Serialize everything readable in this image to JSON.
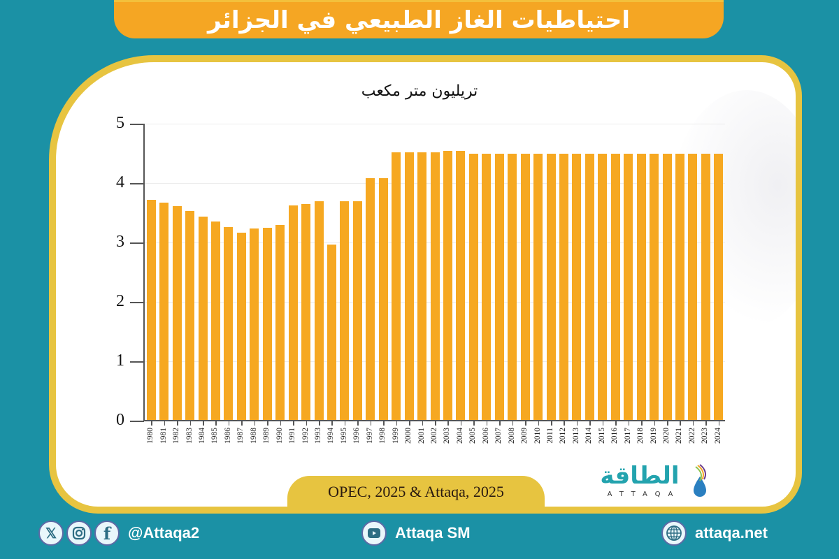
{
  "title": "احتياطيات الغاز الطبيعي في الجزائر",
  "unit_label": "تريليون متر مكعب",
  "source": "OPEC, 2025 & Attaqa, 2025",
  "logo": {
    "arabic": "الطاقة",
    "latin": "ATTAQA"
  },
  "footer": {
    "social_handle": "@Attaqa2",
    "youtube": "Attaqa SM",
    "website": "attaqa.net",
    "icons": [
      "x-icon",
      "instagram-icon",
      "facebook-icon",
      "youtube-icon",
      "globe-icon"
    ]
  },
  "colors": {
    "background": "#1b91a5",
    "accent_orange": "#f5a623",
    "frame_yellow": "#e7c440",
    "bar": "#f6a821",
    "logo_teal": "#23a3ae"
  },
  "chart_data": {
    "type": "bar",
    "title": "احتياطيات الغاز الطبيعي في الجزائر",
    "ylabel": "تريليون متر مكعب",
    "xlabel": "",
    "ylim": [
      0,
      5
    ],
    "yticks": [
      0,
      1,
      2,
      3,
      4,
      5
    ],
    "grid": true,
    "legend": null,
    "categories": [
      "1980",
      "1981",
      "1982",
      "1983",
      "1984",
      "1985",
      "1986",
      "1987",
      "1988",
      "1989",
      "1990",
      "1991",
      "1992",
      "1993",
      "1994",
      "1995",
      "1996",
      "1997",
      "1998",
      "1999",
      "2000",
      "2001",
      "2002",
      "2003",
      "2004",
      "2005",
      "2006",
      "2007",
      "2008",
      "2009",
      "2010",
      "2011",
      "2012",
      "2013",
      "2014",
      "2015",
      "2016",
      "2017",
      "2018",
      "2019",
      "2020",
      "2021",
      "2022",
      "2023",
      "2024"
    ],
    "values": [
      3.72,
      3.67,
      3.61,
      3.53,
      3.44,
      3.35,
      3.26,
      3.16,
      3.23,
      3.25,
      3.3,
      3.62,
      3.65,
      3.7,
      2.96,
      3.69,
      3.7,
      4.08,
      4.08,
      4.52,
      4.52,
      4.52,
      4.52,
      4.54,
      4.54,
      4.5,
      4.5,
      4.5,
      4.5,
      4.5,
      4.5,
      4.5,
      4.5,
      4.5,
      4.5,
      4.5,
      4.5,
      4.5,
      4.5,
      4.5,
      4.5,
      4.5,
      4.5,
      4.5,
      4.5
    ],
    "source": "OPEC, 2025 & Attaqa, 2025"
  }
}
